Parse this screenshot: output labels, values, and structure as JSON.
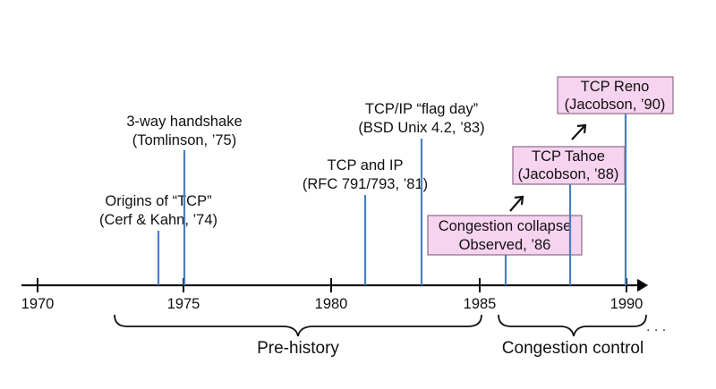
{
  "axis": {
    "ticks": [
      {
        "year": 1970,
        "label": "1970"
      },
      {
        "year": 1975,
        "label": "1975"
      },
      {
        "year": 1980,
        "label": "1980"
      },
      {
        "year": 1985,
        "label": "1985"
      },
      {
        "year": 1990,
        "label": "1990"
      }
    ],
    "ellipsis": ". . ."
  },
  "events": [
    {
      "key": "origins",
      "year": 1974.1,
      "line1": "Origins of “TCP”",
      "line2": "(Cerf & Kahn, ’74)",
      "highlight": false
    },
    {
      "key": "handshake",
      "year": 1975.0,
      "line1": "3-way handshake",
      "line2": "(Tomlinson, ’75)",
      "highlight": false
    },
    {
      "key": "tcpip",
      "year": 1981.2,
      "line1": "TCP and IP",
      "line2": "(RFC 791/793, ’81)",
      "highlight": false
    },
    {
      "key": "flagday",
      "year": 1983.0,
      "line1": "TCP/IP “flag day”",
      "line2": "(BSD Unix 4.2, ’83)",
      "highlight": false
    },
    {
      "key": "collapse",
      "year": 1985.9,
      "line1": "Congestion collapse",
      "line2": "Observed, ’86",
      "highlight": true
    },
    {
      "key": "tahoe",
      "year": 1988.0,
      "line1": "TCP Tahoe",
      "line2": "(Jacobson, ’88)",
      "highlight": true
    },
    {
      "key": "reno",
      "year": 1990.0,
      "line1": "TCP Reno",
      "line2": "(Jacobson, ’90)",
      "highlight": true
    }
  ],
  "periods": [
    {
      "key": "prehistory",
      "label": "Pre-history"
    },
    {
      "key": "congestion",
      "label": "Congestion control"
    }
  ],
  "colors": {
    "marker": "#4a7fc1",
    "highlight_fill": "#f6d3ee",
    "highlight_border": "#8d6b85",
    "axis": "#111111"
  }
}
